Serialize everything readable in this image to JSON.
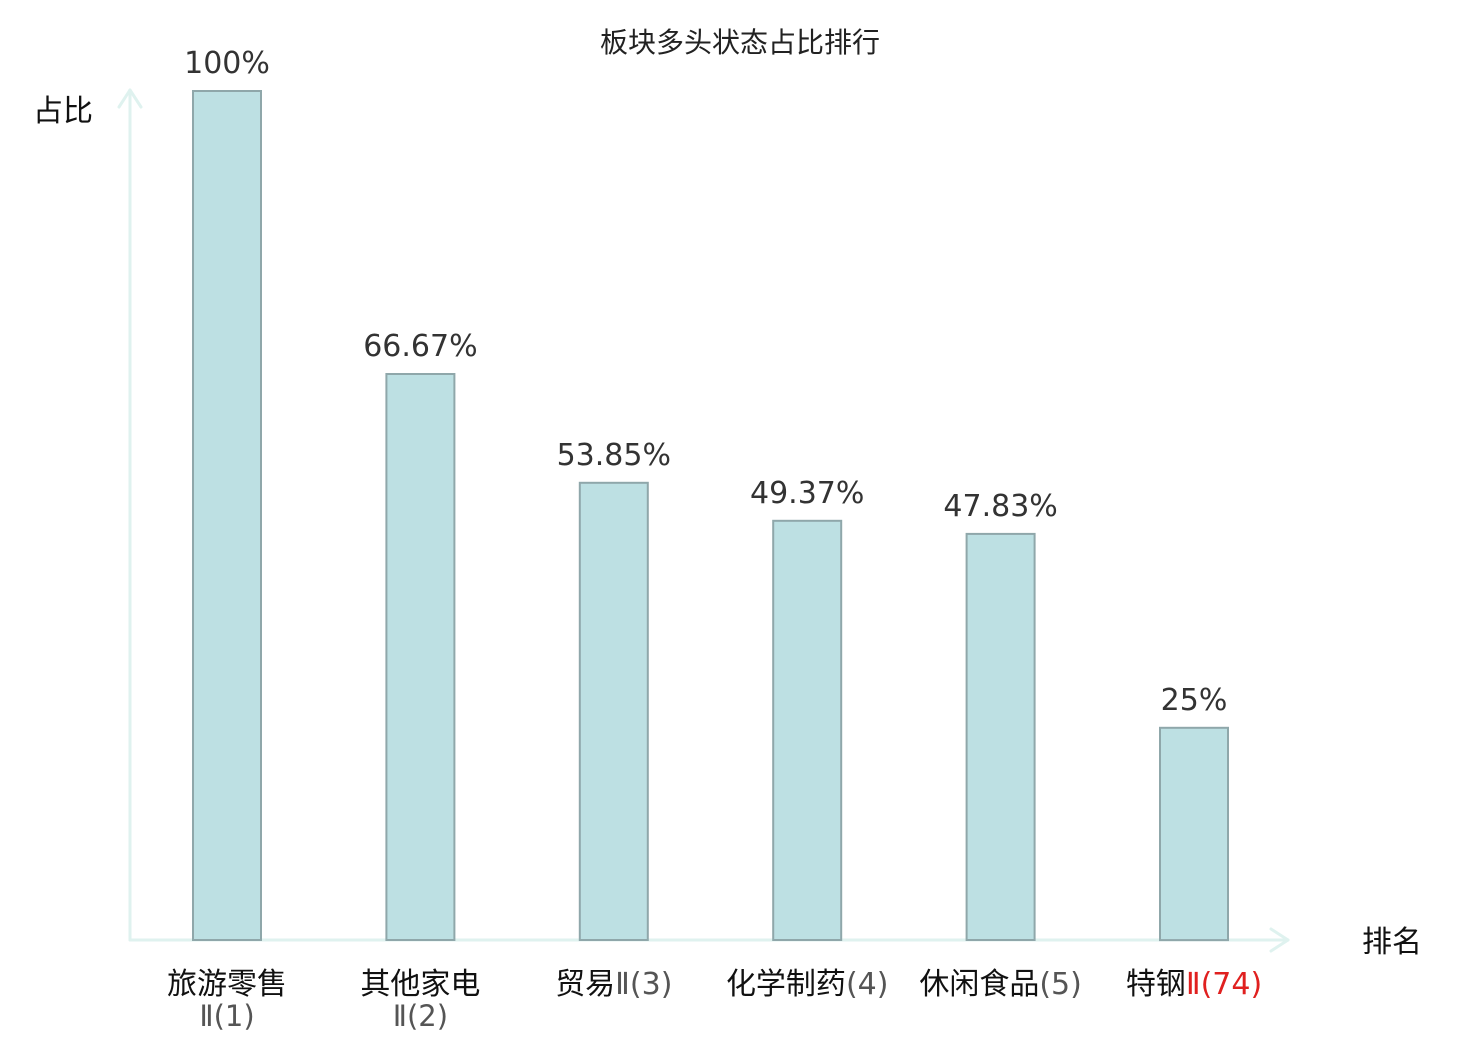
{
  "chart_data": {
    "type": "bar",
    "title": "板块多头状态占比排行",
    "ylabel": "占比",
    "xlabel": "排名",
    "categories": [
      {
        "name": "旅游零售",
        "rank": "Ⅱ(1)",
        "highlight": false
      },
      {
        "name": "其他家电",
        "rank": "Ⅱ(2)",
        "highlight": false
      },
      {
        "name": "贸易",
        "rank": "Ⅱ(3)",
        "highlight": false
      },
      {
        "name": "化学制药",
        "rank": "(4)",
        "highlight": false
      },
      {
        "name": "休闲食品",
        "rank": "(5)",
        "highlight": false
      },
      {
        "name": "特钢",
        "rank": "Ⅱ(74)",
        "highlight": true
      }
    ],
    "values": [
      100,
      66.67,
      53.85,
      49.37,
      47.83,
      25
    ],
    "value_labels": [
      "100%",
      "66.67%",
      "53.85%",
      "49.37%",
      "47.83%",
      "25%"
    ],
    "ylim": [
      0,
      100
    ],
    "grid": false,
    "colors": {
      "bar_fill": "#bde0e3",
      "bar_stroke": "#8fa7aa",
      "axis": "#dff2ef",
      "highlight": "#e0201f",
      "label": "#111111",
      "sub_label": "#555555"
    }
  }
}
